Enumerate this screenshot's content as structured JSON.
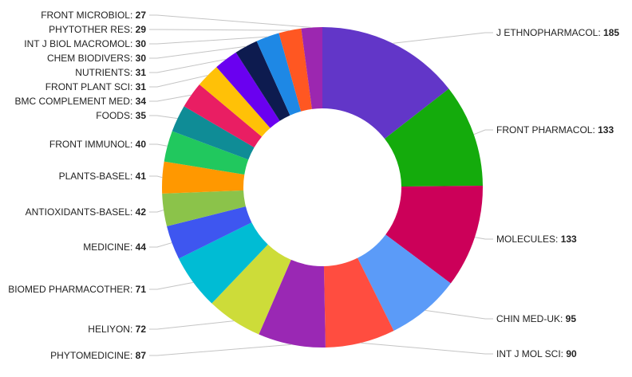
{
  "chart_data": {
    "type": "pie",
    "donut": true,
    "title": "",
    "slices": [
      {
        "label": "J ETHNOPHARMACOL",
        "value": 185,
        "color": "#6236c8"
      },
      {
        "label": "FRONT PHARMACOL",
        "value": 133,
        "color": "#14ab0c"
      },
      {
        "label": "MOLECULES",
        "value": 133,
        "color": "#cc0059"
      },
      {
        "label": "CHIN MED-UK",
        "value": 95,
        "color": "#5b9bf8"
      },
      {
        "label": "INT J MOL SCI",
        "value": 90,
        "color": "#ff4d40"
      },
      {
        "label": "PHYTOMEDICINE",
        "value": 87,
        "color": "#9a28b4"
      },
      {
        "label": "HELIYON",
        "value": 72,
        "color": "#cddc39"
      },
      {
        "label": "BIOMED PHARMACOTHER",
        "value": 71,
        "color": "#00bcd4"
      },
      {
        "label": "MEDICINE",
        "value": 44,
        "color": "#3e56f0"
      },
      {
        "label": "ANTIOXIDANTS-BASEL",
        "value": 42,
        "color": "#8bc34a"
      },
      {
        "label": "PLANTS-BASEL",
        "value": 41,
        "color": "#ff9800"
      },
      {
        "label": "FRONT IMMUNOL",
        "value": 40,
        "color": "#21c85e"
      },
      {
        "label": "FOODS",
        "value": 35,
        "color": "#0f8c96"
      },
      {
        "label": "BMC COMPLEMENT MED",
        "value": 34,
        "color": "#e91e63"
      },
      {
        "label": "FRONT PLANT SCI",
        "value": 31,
        "color": "#ffc107"
      },
      {
        "label": "NUTRIENTS",
        "value": 31,
        "color": "#6a00f0"
      },
      {
        "label": "CHEM BIODIVERS",
        "value": 30,
        "color": "#0d1b4f"
      },
      {
        "label": "INT J BIOL MACROMOL",
        "value": 30,
        "color": "#1e88e5"
      },
      {
        "label": "PHYTOTHER RES",
        "value": 29,
        "color": "#ff5722"
      },
      {
        "label": "FRONT MICROBIOL",
        "value": 27,
        "color": "#9c27b0"
      }
    ]
  }
}
